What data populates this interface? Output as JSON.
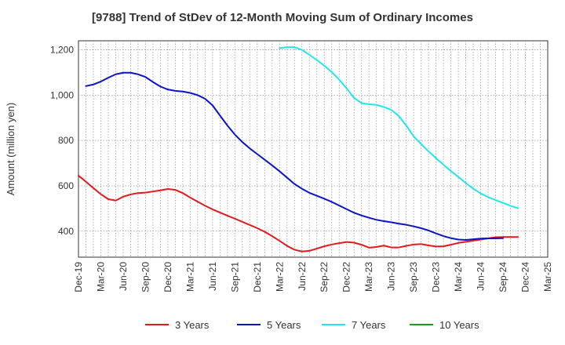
{
  "chart_data": {
    "type": "line",
    "title": "[9788]  Trend of StDev of 12-Month Moving Sum of Ordinary Incomes",
    "xlabel": "",
    "ylabel": "Amount (million yen)",
    "ylim": [
      285,
      1240
    ],
    "yticks": [
      400,
      600,
      800,
      1000,
      1200
    ],
    "ytick_labels": [
      "400",
      "600",
      "800",
      "1,000",
      "1,200"
    ],
    "x_tick_labels": [
      "Dec-19",
      "Mar-20",
      "Jun-20",
      "Sep-20",
      "Dec-20",
      "Mar-21",
      "Jun-21",
      "Sep-21",
      "Dec-21",
      "Mar-22",
      "Jun-22",
      "Sep-22",
      "Dec-22",
      "Mar-23",
      "Jun-23",
      "Sep-23",
      "Dec-23",
      "Mar-24",
      "Jun-24",
      "Sep-24",
      "Dec-24",
      "Mar-25"
    ],
    "grid": true,
    "legend_position": "bottom",
    "series": [
      {
        "name": "3 Years",
        "color": "#e31a1c",
        "values": [
          645,
          618,
          590,
          563,
          541,
          535,
          552,
          562,
          568,
          570,
          575,
          580,
          586,
          582,
          568,
          548,
          530,
          512,
          496,
          482,
          468,
          455,
          441,
          427,
          413,
          397,
          378,
          357,
          335,
          318,
          310,
          313,
          323,
          333,
          341,
          347,
          352,
          349,
          340,
          327,
          330,
          336,
          328,
          328,
          335,
          341,
          343,
          337,
          332,
          333,
          340,
          348,
          353,
          358,
          363,
          368,
          373,
          374,
          374,
          374
        ],
        "start": 0
      },
      {
        "name": "5 Years",
        "color": "#0a14c8",
        "values": [
          1040,
          1047,
          1060,
          1077,
          1092,
          1099,
          1099,
          1092,
          1080,
          1058,
          1038,
          1025,
          1019,
          1016,
          1010,
          1000,
          984,
          955,
          910,
          866,
          826,
          793,
          765,
          740,
          715,
          690,
          664,
          636,
          608,
          587,
          569,
          556,
          543,
          529,
          513,
          497,
          481,
          469,
          459,
          450,
          444,
          439,
          433,
          428,
          421,
          413,
          403,
          390,
          378,
          369,
          363,
          361,
          364,
          367,
          368,
          368,
          369
        ],
        "start": 1
      },
      {
        "name": "7 Years",
        "color": "#22e5ee",
        "values": [
          1207,
          1212,
          1212,
          1200,
          1178,
          1155,
          1130,
          1102,
          1068,
          1030,
          988,
          965,
          960,
          957,
          948,
          935,
          908,
          866,
          818,
          784,
          752,
          722,
          693,
          665,
          639,
          612,
          587,
          566,
          550,
          537,
          525,
          512,
          501
        ],
        "start": 27
      },
      {
        "name": "10 Years",
        "color": "#1c9b1c",
        "values": [],
        "start": 0
      }
    ]
  }
}
